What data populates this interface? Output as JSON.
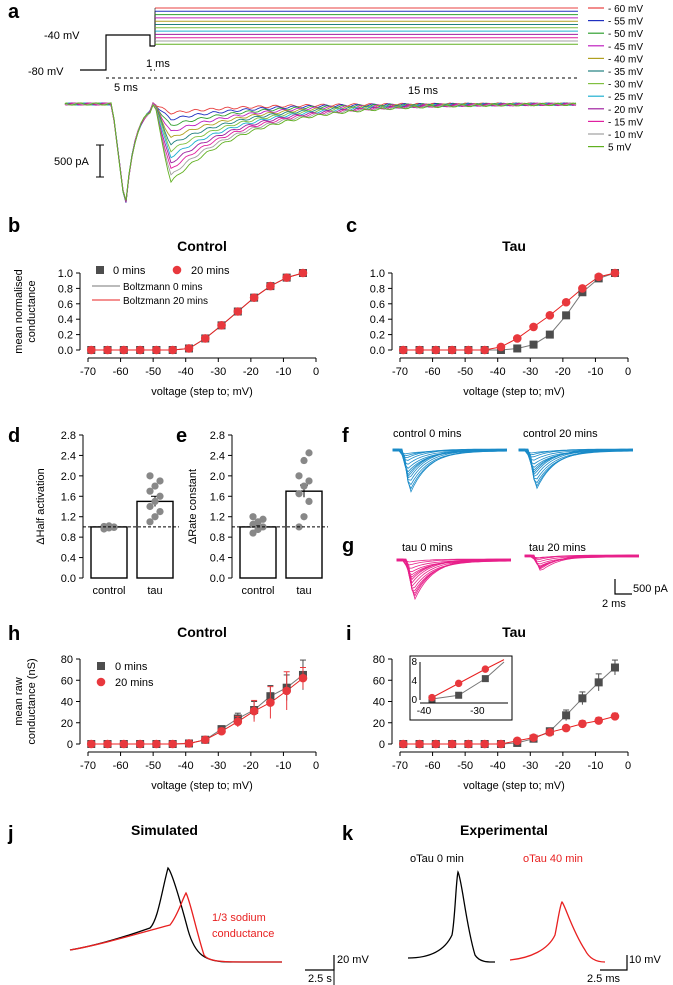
{
  "colors": {
    "ctl0": "#4d4d4d",
    "ctl20": "#e8383d",
    "cyan": "#1a8bc8",
    "magenta": "#e8208a",
    "red": "#e82020",
    "black": "#000000",
    "gray": "#888888"
  },
  "panels": {
    "a": "a",
    "b": "b",
    "c": "c",
    "d": "d",
    "e": "e",
    "f": "f",
    "g": "g",
    "h": "h",
    "i": "i",
    "j": "j",
    "k": "k"
  },
  "protocol": {
    "hold1": "-40 mV",
    "hold2": "-80 mV",
    "t1": "1 ms",
    "t2": "5 ms",
    "t3": "15 ms",
    "scale": "500 pA",
    "steps": [
      {
        "label": "- 60 mV",
        "color": "#e84040"
      },
      {
        "label": "- 55 mV",
        "color": "#2030c0"
      },
      {
        "label": "- 50 mV",
        "color": "#30a030"
      },
      {
        "label": "- 45 mV",
        "color": "#c020c0"
      },
      {
        "label": "- 40 mV",
        "color": "#b0a020"
      },
      {
        "label": "- 35 mV",
        "color": "#208080"
      },
      {
        "label": "- 30 mV",
        "color": "#80c040"
      },
      {
        "label": "- 25 mV",
        "color": "#20b0d0"
      },
      {
        "label": "- 20 mV",
        "color": "#a020a0"
      },
      {
        "label": "- 15 mV",
        "color": "#e020a0"
      },
      {
        "label": "- 10 mV",
        "color": "#a0a0a0"
      },
      {
        "label": "  5 mV",
        "color": "#60b020"
      }
    ]
  },
  "chart_data": [
    {
      "id": "b",
      "type": "line",
      "title": "Control",
      "xlabel": "voltage (step to; mV)",
      "ylabel": "mean normalised conductance",
      "xlim": [
        -70,
        0
      ],
      "ylim": [
        0,
        1.0
      ],
      "xticks": [
        -70,
        -60,
        -50,
        -40,
        -30,
        -20,
        -10,
        0
      ],
      "yticks": [
        "0.0",
        "0.2",
        "0.4",
        "0.6",
        "0.8",
        "1.0"
      ],
      "legend": [
        "0 mins",
        "20 mins",
        "Boltzmann 0 mins",
        "Boltzmann 20 mins"
      ],
      "x": [
        -69,
        -64,
        -59,
        -54,
        -49,
        -44,
        -39,
        -34,
        -29,
        -24,
        -19,
        -14,
        -9,
        -4
      ],
      "series": [
        {
          "name": "0 mins",
          "values": [
            0,
            0,
            0,
            0,
            0,
            0,
            0.02,
            0.15,
            0.32,
            0.5,
            0.68,
            0.83,
            0.94,
            1.0
          ]
        },
        {
          "name": "20 mins",
          "values": [
            0,
            0,
            0,
            0,
            0,
            0,
            0.02,
            0.15,
            0.32,
            0.5,
            0.68,
            0.83,
            0.94,
            1.0
          ]
        }
      ]
    },
    {
      "id": "c",
      "type": "line",
      "title": "Tau",
      "xlabel": "voltage (step to; mV)",
      "ylabel": "",
      "xlim": [
        -70,
        0
      ],
      "ylim": [
        0,
        1.0
      ],
      "xticks": [
        -70,
        -60,
        -50,
        -40,
        -30,
        -20,
        -10,
        0
      ],
      "yticks": [
        "0.0",
        "0.2",
        "0.4",
        "0.6",
        "0.8",
        "1.0"
      ],
      "x": [
        -69,
        -64,
        -59,
        -54,
        -49,
        -44,
        -39,
        -34,
        -29,
        -24,
        -19,
        -14,
        -9,
        -4
      ],
      "series": [
        {
          "name": "0 mins",
          "values": [
            0,
            0,
            0,
            0,
            0,
            0,
            0,
            0.02,
            0.07,
            0.2,
            0.45,
            0.75,
            0.93,
            1.0
          ]
        },
        {
          "name": "20 mins",
          "values": [
            0,
            0,
            0,
            0,
            0,
            0,
            0.04,
            0.15,
            0.3,
            0.45,
            0.62,
            0.8,
            0.95,
            1.0
          ]
        }
      ]
    },
    {
      "id": "d",
      "type": "bar",
      "ylabel": "ΔHalf activation",
      "categories": [
        "control",
        "tau"
      ],
      "values": [
        1.0,
        1.5
      ],
      "errors": [
        0.02,
        0.1
      ],
      "ylim": [
        0,
        2.8
      ],
      "yticks": [
        "0.0",
        "0.4",
        "0.8",
        "1.2",
        "1.6",
        "2.0",
        "2.4",
        "2.8"
      ],
      "points": [
        [
          0.96,
          0.98,
          1.0,
          1.01,
          1.02,
          0.99
        ],
        [
          1.1,
          1.2,
          1.3,
          1.4,
          1.5,
          1.6,
          1.7,
          1.8,
          1.9,
          2.0
        ]
      ]
    },
    {
      "id": "e",
      "type": "bar",
      "ylabel": "ΔRate constant",
      "categories": [
        "control",
        "tau"
      ],
      "values": [
        1.0,
        1.7
      ],
      "errors": [
        0.03,
        0.12
      ],
      "ylim": [
        0,
        2.8
      ],
      "yticks": [
        "0.0",
        "0.4",
        "0.8",
        "1.2",
        "1.6",
        "2.0",
        "2.4",
        "2.8"
      ],
      "points": [
        [
          0.88,
          0.95,
          1.0,
          1.05,
          1.1,
          1.15,
          1.2
        ],
        [
          1.0,
          1.2,
          1.5,
          1.65,
          1.8,
          1.9,
          2.0,
          2.3,
          2.45
        ]
      ]
    },
    {
      "id": "h",
      "type": "line",
      "title": "Control",
      "xlabel": "voltage (step to; mV)",
      "ylabel": "mean raw conductance (nS)",
      "xlim": [
        -70,
        0
      ],
      "ylim": [
        0,
        80
      ],
      "xticks": [
        -70,
        -60,
        -50,
        -40,
        -30,
        -20,
        -10,
        0
      ],
      "yticks": [
        "0",
        "20",
        "40",
        "60",
        "80"
      ],
      "legend": [
        "0 mins",
        "20 mins"
      ],
      "x": [
        -69,
        -64,
        -59,
        -54,
        -49,
        -44,
        -39,
        -34,
        -29,
        -24,
        -19,
        -14,
        -9,
        -4
      ],
      "series": [
        {
          "name": "0 mins",
          "values": [
            0,
            0,
            0,
            0,
            0,
            0,
            0.5,
            4,
            14,
            24,
            32,
            45,
            53,
            65
          ],
          "errors": [
            0,
            0,
            0,
            0,
            0,
            0,
            0.5,
            2,
            3,
            5,
            8,
            10,
            12,
            14
          ]
        },
        {
          "name": "20 mins",
          "values": [
            0,
            0,
            0,
            0,
            0,
            0,
            0.5,
            4,
            12,
            21,
            31,
            39,
            50,
            62
          ],
          "errors": [
            0,
            0,
            0,
            0,
            0,
            0,
            0.5,
            2,
            3,
            5,
            10,
            15,
            18,
            10
          ]
        }
      ]
    },
    {
      "id": "i",
      "type": "line",
      "title": "Tau",
      "xlabel": "voltage (step to; mV)",
      "ylabel": "",
      "xlim": [
        -70,
        0
      ],
      "ylim": [
        0,
        80
      ],
      "xticks": [
        -70,
        -60,
        -50,
        -40,
        -30,
        -20,
        -10,
        0
      ],
      "yticks": [
        "0",
        "20",
        "40",
        "60",
        "80"
      ],
      "x": [
        -69,
        -64,
        -59,
        -54,
        -49,
        -44,
        -39,
        -34,
        -29,
        -24,
        -19,
        -14,
        -9,
        -4
      ],
      "series": [
        {
          "name": "0 mins",
          "values": [
            0,
            0,
            0,
            0,
            0,
            0,
            0,
            1,
            5,
            12,
            27,
            43,
            58,
            72
          ],
          "errors": [
            0,
            0,
            0,
            0,
            0,
            0,
            0,
            0.5,
            1.5,
            2,
            5,
            6,
            8,
            7
          ]
        },
        {
          "name": "20 mins",
          "values": [
            0,
            0,
            0,
            0,
            0,
            0,
            0,
            3,
            6,
            11,
            15,
            19,
            22,
            26
          ],
          "errors": [
            0,
            0,
            0,
            0,
            0,
            0,
            0,
            1,
            1.5,
            2,
            2,
            3,
            3,
            3
          ]
        }
      ],
      "inset": {
        "xlim": [
          -40,
          -25
        ],
        "ylim": [
          0,
          8
        ],
        "xticks": [
          "-40",
          "-30"
        ],
        "yticks": [
          "0",
          "4",
          "8"
        ],
        "x": [
          -38.5,
          -33.5,
          -28.5
        ],
        "s0": [
          0.2,
          1.0,
          4.5
        ],
        "s1": [
          0.5,
          3.5,
          6.5
        ]
      }
    }
  ],
  "h": {
    "legend0": "0 mins",
    "legend1": "20 mins"
  },
  "traces": {
    "f1": "control 0 mins",
    "f2": "control 20 mins",
    "g1": "tau 0 mins",
    "g2": "tau 20 mins",
    "scale_y": "500 pA",
    "scale_x": "2 ms"
  },
  "j": {
    "title": "Simulated",
    "annot1": "1/3 sodium",
    "annot2": "conductance",
    "scale_y": "20 mV",
    "scale_x": "2.5 s"
  },
  "k": {
    "title": "Experimental",
    "lbl1": "oTau 0 min",
    "lbl2": "oTau 40 min",
    "scale_y": "10 mV",
    "scale_x": "2.5 ms"
  }
}
